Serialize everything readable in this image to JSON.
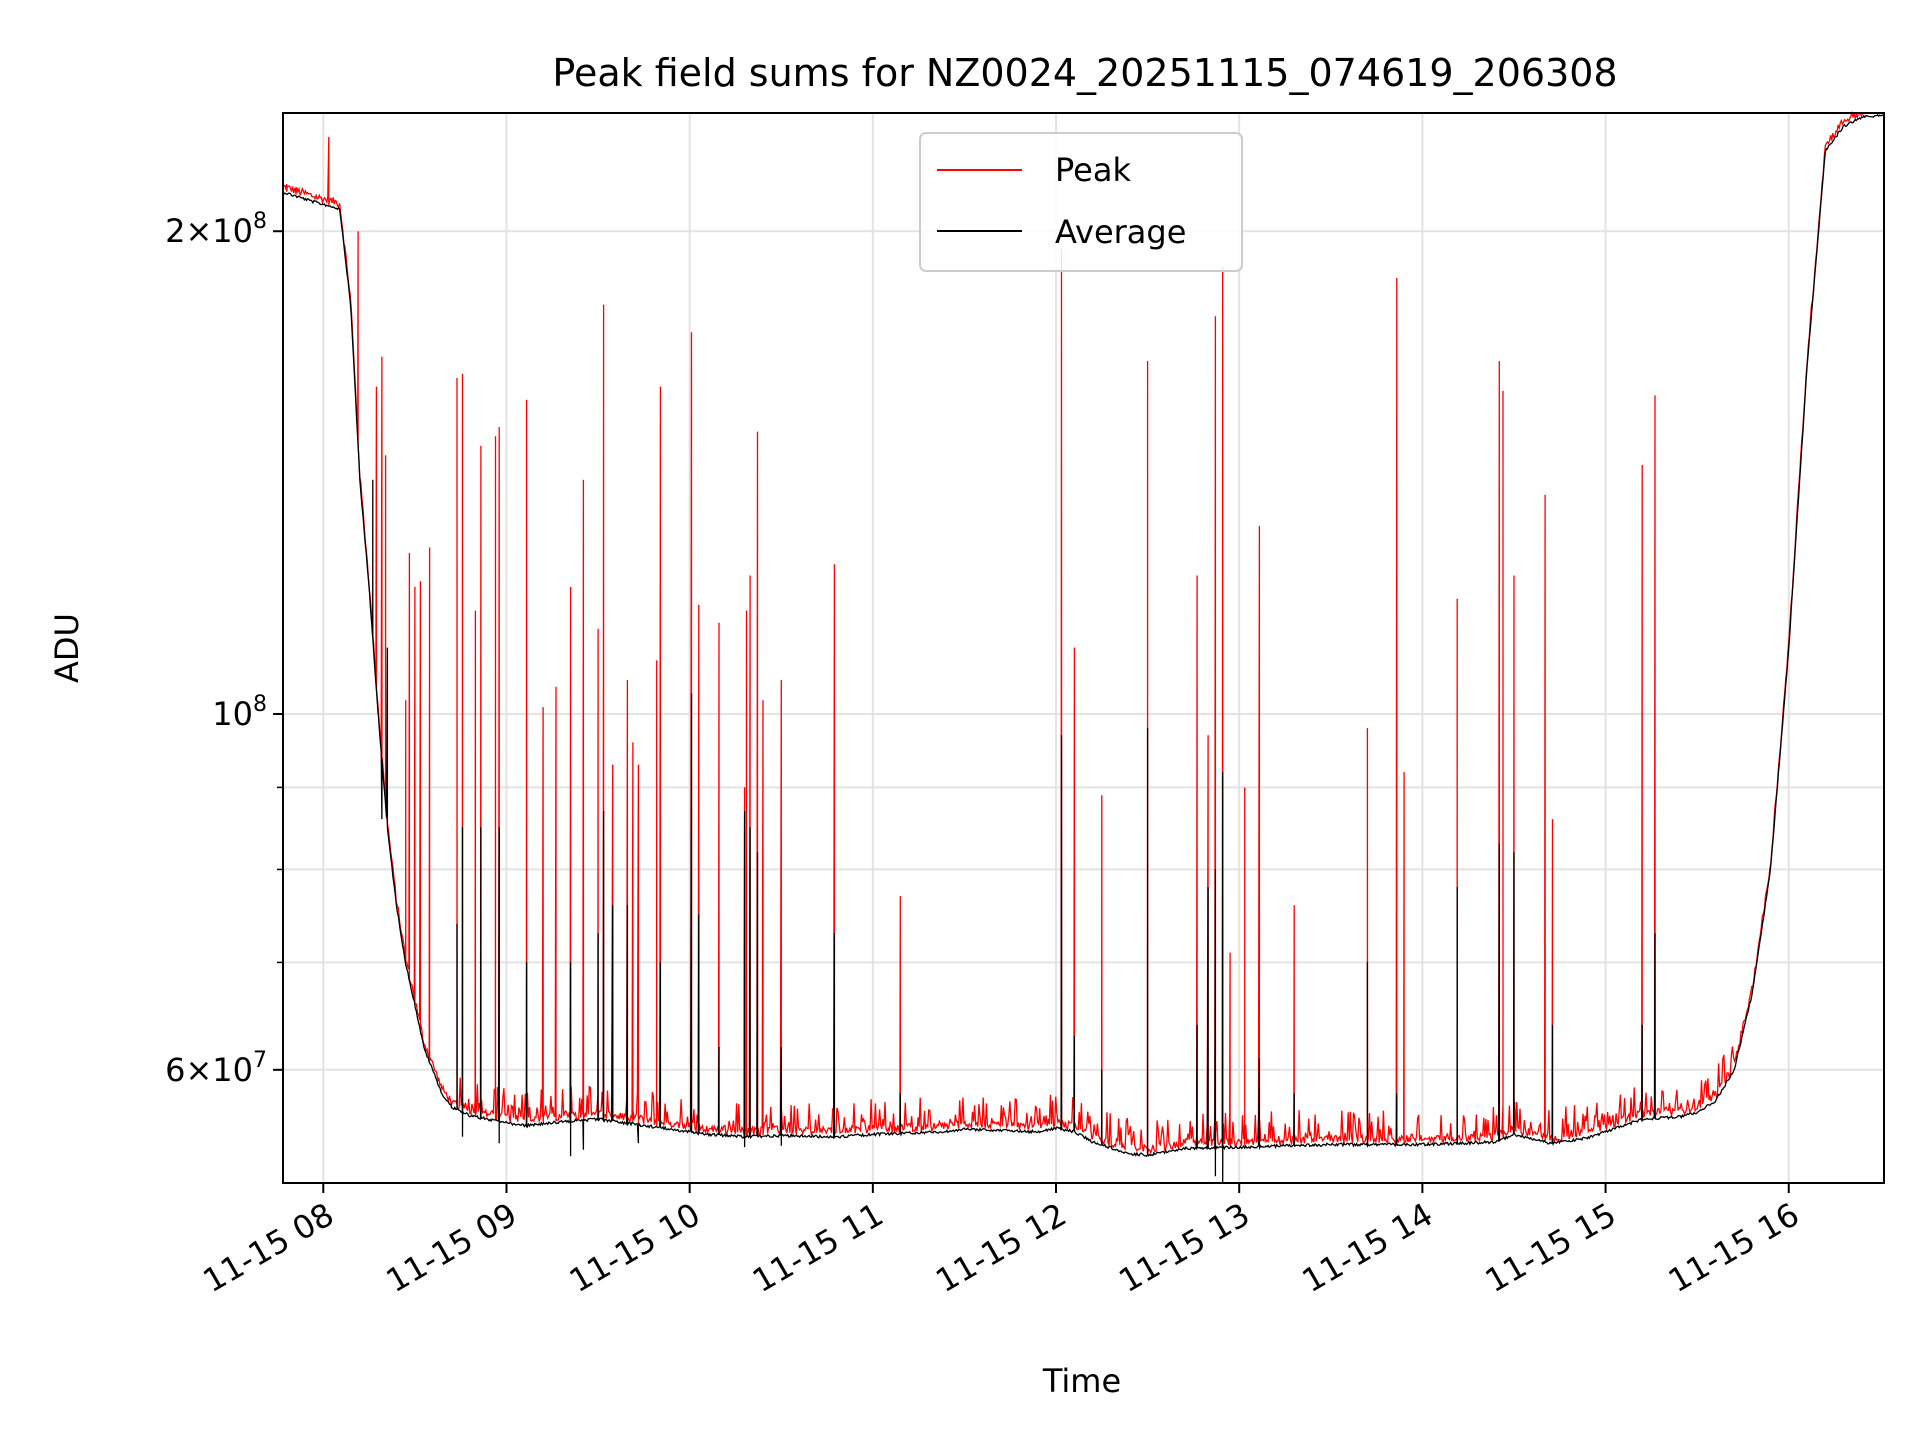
{
  "chart_data": {
    "type": "line",
    "title": "Peak field sums for NZ0024_20251115_074619_206308",
    "xlabel": "Time",
    "ylabel": "ADU",
    "yscale": "log",
    "grid": true,
    "legend_position": "top-center",
    "xlim": [
      7.78,
      16.52
    ],
    "ylim": [
      51000000,
      237000000
    ],
    "x_ticks": [
      {
        "value": 8,
        "label": "11-15 08"
      },
      {
        "value": 9,
        "label": "11-15 09"
      },
      {
        "value": 10,
        "label": "11-15 10"
      },
      {
        "value": 11,
        "label": "11-15 11"
      },
      {
        "value": 12,
        "label": "11-15 12"
      },
      {
        "value": 13,
        "label": "11-15 13"
      },
      {
        "value": 14,
        "label": "11-15 14"
      },
      {
        "value": 15,
        "label": "11-15 15"
      },
      {
        "value": 16,
        "label": "11-15 16"
      }
    ],
    "y_ticks": [
      {
        "value": 200000000,
        "mantissa": "2",
        "exponent": "8"
      },
      {
        "value": 100000000,
        "mantissa": "",
        "exponent": "8"
      },
      {
        "value": 60000000,
        "mantissa": "6",
        "exponent": "7"
      }
    ],
    "y_minor_ticks": [
      70000000,
      80000000,
      90000000
    ],
    "series": [
      {
        "name": "Peak",
        "color": "#ff0000"
      },
      {
        "name": "Average",
        "color": "#000000"
      }
    ],
    "baseline": [
      [
        7.78,
        212000000
      ],
      [
        7.95,
        209000000
      ],
      [
        8.09,
        207000000
      ],
      [
        8.15,
        180000000
      ],
      [
        8.2,
        140000000
      ],
      [
        8.25,
        120000000
      ],
      [
        8.3,
        100000000
      ],
      [
        8.35,
        85000000
      ],
      [
        8.4,
        76000000
      ],
      [
        8.45,
        70000000
      ],
      [
        8.5,
        66000000
      ],
      [
        8.55,
        62000000
      ],
      [
        8.6,
        60000000
      ],
      [
        8.65,
        58000000
      ],
      [
        8.7,
        57000000
      ],
      [
        8.8,
        56300000
      ],
      [
        9.0,
        55700000
      ],
      [
        9.1,
        55500000
      ],
      [
        9.3,
        55800000
      ],
      [
        9.5,
        56000000
      ],
      [
        9.7,
        55600000
      ],
      [
        9.9,
        55200000
      ],
      [
        10.1,
        54800000
      ],
      [
        10.3,
        54600000
      ],
      [
        10.5,
        54700000
      ],
      [
        10.8,
        54600000
      ],
      [
        11.0,
        54800000
      ],
      [
        11.2,
        54900000
      ],
      [
        11.4,
        55000000
      ],
      [
        11.5,
        55200000
      ],
      [
        11.7,
        55100000
      ],
      [
        11.9,
        55000000
      ],
      [
        12.0,
        55300000
      ],
      [
        12.1,
        55000000
      ],
      [
        12.2,
        54200000
      ],
      [
        12.4,
        53300000
      ],
      [
        12.5,
        53200000
      ],
      [
        12.7,
        53700000
      ],
      [
        13.0,
        53800000
      ],
      [
        13.5,
        54000000
      ],
      [
        14.0,
        54000000
      ],
      [
        14.4,
        54200000
      ],
      [
        14.5,
        54800000
      ],
      [
        14.7,
        54100000
      ],
      [
        14.9,
        54500000
      ],
      [
        15.0,
        55000000
      ],
      [
        15.2,
        56000000
      ],
      [
        15.4,
        56200000
      ],
      [
        15.5,
        56500000
      ],
      [
        15.6,
        57500000
      ],
      [
        15.7,
        60000000
      ],
      [
        15.8,
        67000000
      ],
      [
        15.9,
        80000000
      ],
      [
        16.0,
        110000000
      ],
      [
        16.1,
        165000000
      ],
      [
        16.2,
        225000000
      ],
      [
        16.3,
        233000000
      ],
      [
        16.4,
        236000000
      ],
      [
        16.52,
        237000000
      ]
    ],
    "peak_spikes": [
      [
        7.8,
        214000000
      ],
      [
        7.85,
        213000000
      ],
      [
        8.03,
        229000000
      ],
      [
        8.19,
        200000000
      ],
      [
        8.29,
        160000000
      ],
      [
        8.32,
        167000000
      ],
      [
        8.34,
        145000000
      ],
      [
        8.45,
        102000000
      ],
      [
        8.47,
        126000000
      ],
      [
        8.5,
        120000000
      ],
      [
        8.53,
        121000000
      ],
      [
        8.58,
        127000000
      ],
      [
        8.73,
        162000000
      ],
      [
        8.76,
        163000000
      ],
      [
        8.83,
        116000000
      ],
      [
        8.86,
        147000000
      ],
      [
        8.94,
        149000000
      ],
      [
        8.96,
        151000000
      ],
      [
        9.11,
        157000000
      ],
      [
        9.2,
        101000000
      ],
      [
        9.27,
        104000000
      ],
      [
        9.35,
        120000000
      ],
      [
        9.42,
        140000000
      ],
      [
        9.5,
        113000000
      ],
      [
        9.53,
        180000000
      ],
      [
        9.58,
        93000000
      ],
      [
        9.66,
        105000000
      ],
      [
        9.69,
        96000000
      ],
      [
        9.72,
        93000000
      ],
      [
        9.82,
        108000000
      ],
      [
        9.84,
        160000000
      ],
      [
        10.01,
        173000000
      ],
      [
        10.05,
        117000000
      ],
      [
        10.16,
        114000000
      ],
      [
        10.3,
        90000000
      ],
      [
        10.31,
        116000000
      ],
      [
        10.33,
        122000000
      ],
      [
        10.37,
        150000000
      ],
      [
        10.4,
        102000000
      ],
      [
        10.5,
        105000000
      ],
      [
        10.79,
        124000000
      ],
      [
        11.15,
        77000000
      ],
      [
        12.03,
        195000000
      ],
      [
        12.1,
        110000000
      ],
      [
        12.25,
        89000000
      ],
      [
        12.5,
        166000000
      ],
      [
        12.77,
        122000000
      ],
      [
        12.83,
        97000000
      ],
      [
        12.87,
        177000000
      ],
      [
        12.91,
        190000000
      ],
      [
        12.95,
        71000000
      ],
      [
        13.03,
        90000000
      ],
      [
        13.11,
        131000000
      ],
      [
        13.3,
        76000000
      ],
      [
        13.7,
        98000000
      ],
      [
        13.86,
        187000000
      ],
      [
        13.9,
        92000000
      ],
      [
        14.19,
        118000000
      ],
      [
        14.42,
        166000000
      ],
      [
        14.44,
        159000000
      ],
      [
        14.5,
        122000000
      ],
      [
        14.67,
        137000000
      ],
      [
        14.71,
        86000000
      ],
      [
        15.2,
        143000000
      ],
      [
        15.27,
        158000000
      ]
    ],
    "average_spikes": [
      [
        8.27,
        140000000
      ],
      [
        8.3,
        100000000
      ],
      [
        8.32,
        86000000
      ],
      [
        8.35,
        110000000
      ],
      [
        8.73,
        74000000
      ],
      [
        8.76,
        85000000
      ],
      [
        8.86,
        85000000
      ],
      [
        8.96,
        85000000
      ],
      [
        9.11,
        70000000
      ],
      [
        9.35,
        70000000
      ],
      [
        9.5,
        73000000
      ],
      [
        9.53,
        87000000
      ],
      [
        9.58,
        76000000
      ],
      [
        9.66,
        76000000
      ],
      [
        9.84,
        70000000
      ],
      [
        10.01,
        103000000
      ],
      [
        10.05,
        75000000
      ],
      [
        10.16,
        62000000
      ],
      [
        10.3,
        87000000
      ],
      [
        10.33,
        85000000
      ],
      [
        10.37,
        82000000
      ],
      [
        10.5,
        62000000
      ],
      [
        10.79,
        73000000
      ],
      [
        11.15,
        58000000
      ],
      [
        12.03,
        97000000
      ],
      [
        12.1,
        63000000
      ],
      [
        12.25,
        60000000
      ],
      [
        12.5,
        98000000
      ],
      [
        12.77,
        64000000
      ],
      [
        12.83,
        78000000
      ],
      [
        12.87,
        80000000
      ],
      [
        12.91,
        92000000
      ],
      [
        13.11,
        61000000
      ],
      [
        13.3,
        58000000
      ],
      [
        13.7,
        70000000
      ],
      [
        13.86,
        58000000
      ],
      [
        14.19,
        78000000
      ],
      [
        14.42,
        83000000
      ],
      [
        14.5,
        82000000
      ],
      [
        14.71,
        64000000
      ],
      [
        15.2,
        64000000
      ],
      [
        15.27,
        73000000
      ]
    ],
    "average_dips": [
      [
        8.76,
        54500000
      ],
      [
        8.96,
        54000000
      ],
      [
        9.35,
        53000000
      ],
      [
        9.42,
        53500000
      ],
      [
        9.72,
        54000000
      ],
      [
        10.3,
        53700000
      ],
      [
        10.5,
        53800000
      ],
      [
        12.87,
        51500000
      ],
      [
        12.91,
        51000000
      ]
    ]
  }
}
